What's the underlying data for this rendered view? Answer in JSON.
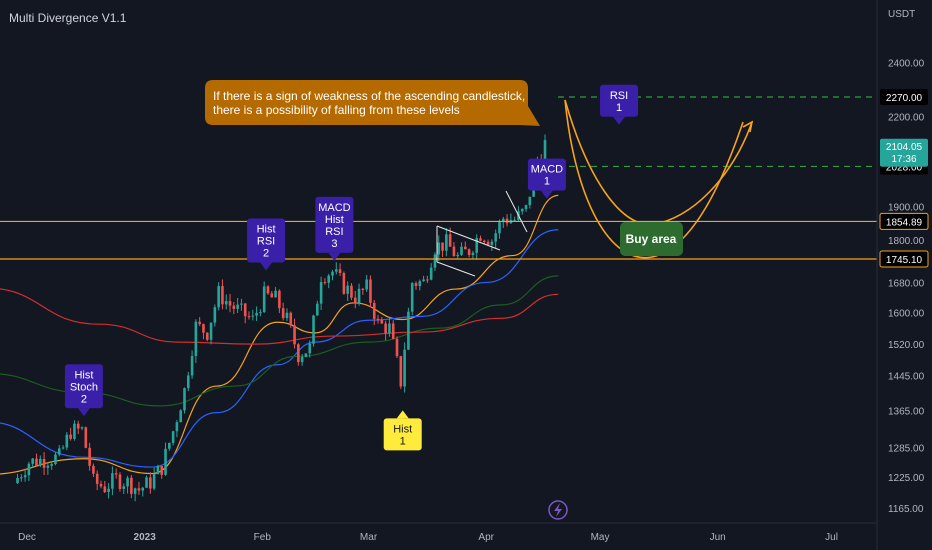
{
  "indicator_title": "Multi Divergence V1.1",
  "currency": "USDT",
  "colors": {
    "background": "#131722",
    "up": "#26a69a",
    "down": "#ef5350",
    "ema_fast": "#f7a21b",
    "ema_mid": "#2962ff",
    "ema_slow": "#1b5e20",
    "ema_long": "#d32f2f",
    "hline": "#f7a21b",
    "dashed": "#2e9e3f",
    "purple_label": "#3a1fa8",
    "yellow_label": "#ffeb3b",
    "callout": "#b56a00",
    "buy_area": "#2e6b2e",
    "price_tag": "#26a69a"
  },
  "annotation": {
    "line1": "If there is a sign of weakness of the ascending candlestick,",
    "line2": "there is a possibility of falling from these levels"
  },
  "buy_area_label": "Buy area",
  "current_price": {
    "value": "2104.05",
    "countdown": "17:36"
  },
  "levels": [
    {
      "value": 2270,
      "label": "2270.00",
      "style": "dashed"
    },
    {
      "value": 2028,
      "label": "2028.00",
      "style": "dashed"
    },
    {
      "value": 1854.89,
      "label": "1854.89",
      "style": "solid"
    },
    {
      "value": 1745.1,
      "label": "1745.10",
      "style": "solid"
    }
  ],
  "divergence_labels": [
    {
      "lines": [
        "Hist",
        "Stoch",
        "2"
      ],
      "kind": "bearish",
      "date": "2022-12-16",
      "price": 1352
    },
    {
      "lines": [
        "Hist",
        "RSI",
        "2"
      ],
      "kind": "bearish",
      "date": "2023-02-02",
      "price": 1713
    },
    {
      "lines": [
        "MACD",
        "Hist",
        "RSI",
        "3"
      ],
      "kind": "bearish",
      "date": "2023-02-20",
      "price": 1740
    },
    {
      "lines": [
        "MACD",
        "1"
      ],
      "kind": "bearish",
      "date": "2023-04-17",
      "price": 1925
    },
    {
      "lines": [
        "RSI",
        "1"
      ],
      "kind": "bearish",
      "date": "2023-05-06",
      "price": 2170
    },
    {
      "lines": [
        "Hist",
        "1"
      ],
      "kind": "bullish",
      "date": "2023-03-10",
      "price": 1365
    }
  ],
  "chart_data": {
    "type": "candlestick",
    "x_axis": {
      "tick_labels": [
        "Dec",
        "2023",
        "Feb",
        "Mar",
        "Apr",
        "May",
        "Jun",
        "Jul"
      ],
      "tick_dates": [
        "2022-12-01",
        "2023-01-01",
        "2023-02-01",
        "2023-03-01",
        "2023-04-01",
        "2023-05-01",
        "2023-06-01",
        "2023-07-01"
      ]
    },
    "y_axis": {
      "scale": "log",
      "ticks": [
        2400,
        2200,
        1900,
        1800,
        1680,
        1600,
        1520,
        1445,
        1365,
        1285,
        1225,
        1165
      ],
      "tick_labels": [
        "2400.00",
        "2200.00",
        "1900.00",
        "1800.00",
        "1680.00",
        "1600.00",
        "1520.00",
        "1445.00",
        "1365.00",
        "1285.00",
        "1225.00",
        "1165.00"
      ],
      "range": [
        1145,
        2600
      ]
    },
    "candles_daily_close": [
      [
        "2022-11-28",
        1213
      ],
      [
        "2022-12-02",
        1255
      ],
      [
        "2022-12-07",
        1262
      ],
      [
        "2022-12-10",
        1265
      ],
      [
        "2022-12-13",
        1320
      ],
      [
        "2022-12-16",
        1322
      ],
      [
        "2022-12-19",
        1215
      ],
      [
        "2022-12-22",
        1205
      ],
      [
        "2022-12-25",
        1221
      ],
      [
        "2022-12-28",
        1215
      ],
      [
        "2022-12-31",
        1200
      ],
      [
        "2023-01-03",
        1215
      ],
      [
        "2023-01-06",
        1245
      ],
      [
        "2023-01-09",
        1320
      ],
      [
        "2023-01-12",
        1410
      ],
      [
        "2023-01-15",
        1565
      ],
      [
        "2023-01-18",
        1550
      ],
      [
        "2023-01-21",
        1650
      ],
      [
        "2023-01-24",
        1620
      ],
      [
        "2023-01-27",
        1600
      ],
      [
        "2023-01-30",
        1580
      ],
      [
        "2023-02-02",
        1645
      ],
      [
        "2023-02-05",
        1635
      ],
      [
        "2023-02-08",
        1580
      ],
      [
        "2023-02-11",
        1495
      ],
      [
        "2023-02-14",
        1510
      ],
      [
        "2023-02-17",
        1700
      ],
      [
        "2023-02-20",
        1710
      ],
      [
        "2023-02-23",
        1670
      ],
      [
        "2023-02-26",
        1640
      ],
      [
        "2023-03-01",
        1665
      ],
      [
        "2023-03-04",
        1570
      ],
      [
        "2023-03-07",
        1560
      ],
      [
        "2023-03-10",
        1430
      ],
      [
        "2023-03-13",
        1680
      ],
      [
        "2023-03-16",
        1680
      ],
      [
        "2023-03-19",
        1780
      ],
      [
        "2023-03-22",
        1790
      ],
      [
        "2023-03-25",
        1750
      ],
      [
        "2023-03-28",
        1770
      ],
      [
        "2023-03-31",
        1820
      ],
      [
        "2023-04-03",
        1800
      ],
      [
        "2023-04-06",
        1865
      ],
      [
        "2023-04-09",
        1860
      ],
      [
        "2023-04-12",
        1890
      ],
      [
        "2023-04-15",
        2050
      ],
      [
        "2023-04-17",
        2104
      ]
    ],
    "moving_averages": [
      {
        "color": "#f7a21b",
        "points": [
          [
            "2022-11-20",
            1230
          ],
          [
            "2022-12-16",
            1262
          ],
          [
            "2023-01-03",
            1232
          ],
          [
            "2023-01-20",
            1420
          ],
          [
            "2023-02-05",
            1575
          ],
          [
            "2023-02-15",
            1548
          ],
          [
            "2023-02-25",
            1625
          ],
          [
            "2023-03-10",
            1582
          ],
          [
            "2023-03-24",
            1662
          ],
          [
            "2023-04-08",
            1755
          ],
          [
            "2023-04-20",
            1935
          ]
        ]
      },
      {
        "color": "#2962ff",
        "points": [
          [
            "2022-11-20",
            1340
          ],
          [
            "2022-12-16",
            1265
          ],
          [
            "2023-01-03",
            1245
          ],
          [
            "2023-01-20",
            1360
          ],
          [
            "2023-02-05",
            1470
          ],
          [
            "2023-02-15",
            1525
          ],
          [
            "2023-03-01",
            1580
          ],
          [
            "2023-03-15",
            1590
          ],
          [
            "2023-04-01",
            1680
          ],
          [
            "2023-04-20",
            1830
          ]
        ]
      },
      {
        "color": "#1b5e20",
        "points": [
          [
            "2022-11-20",
            1450
          ],
          [
            "2022-12-16",
            1405
          ],
          [
            "2023-01-05",
            1375
          ],
          [
            "2023-01-25",
            1420
          ],
          [
            "2023-02-10",
            1490
          ],
          [
            "2023-03-01",
            1525
          ],
          [
            "2023-03-20",
            1560
          ],
          [
            "2023-04-05",
            1620
          ],
          [
            "2023-04-20",
            1698
          ]
        ]
      },
      {
        "color": "#d32f2f",
        "points": [
          [
            "2022-11-20",
            1665
          ],
          [
            "2022-12-20",
            1570
          ],
          [
            "2023-01-10",
            1525
          ],
          [
            "2023-01-30",
            1520
          ],
          [
            "2023-02-20",
            1540
          ],
          [
            "2023-03-15",
            1550
          ],
          [
            "2023-04-05",
            1585
          ],
          [
            "2023-04-20",
            1648
          ]
        ]
      }
    ]
  }
}
